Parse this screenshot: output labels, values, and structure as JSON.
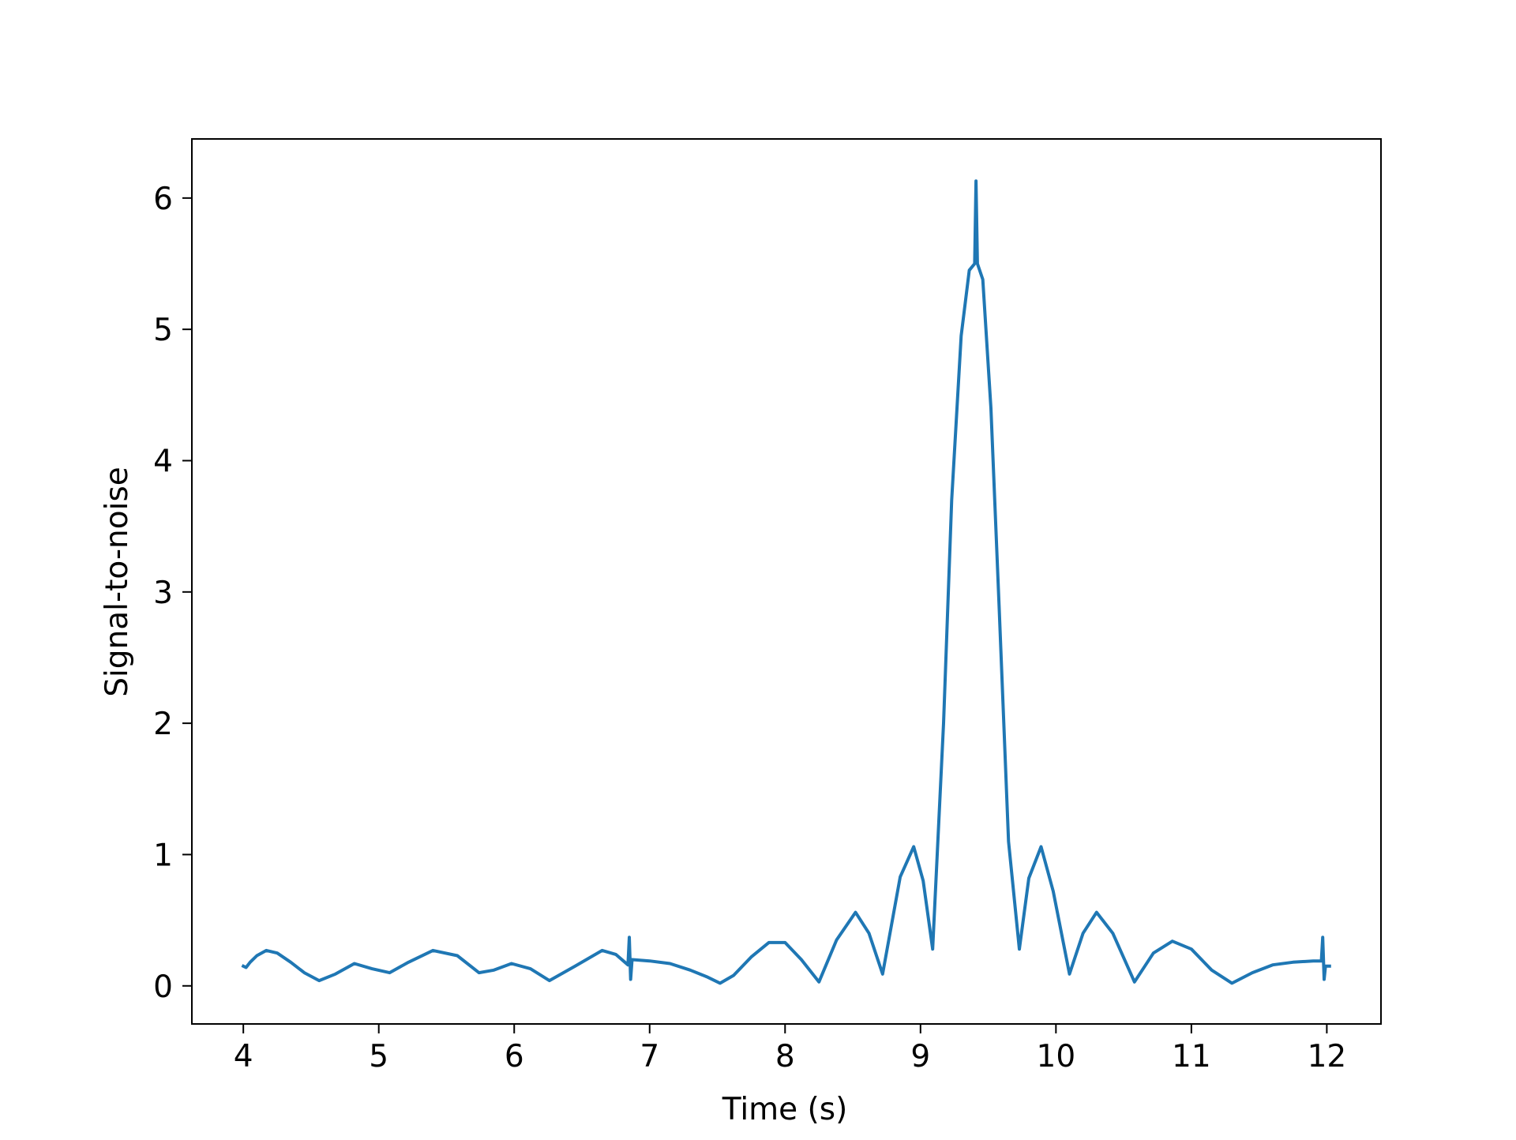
{
  "chart_data": {
    "type": "line",
    "title": "",
    "xlabel": "Time (s)",
    "ylabel": "Signal-to-noise",
    "xlim": [
      3.62,
      12.4
    ],
    "ylim": [
      -0.29,
      6.45
    ],
    "xticks": [
      4,
      5,
      6,
      7,
      8,
      9,
      10,
      11,
      12
    ],
    "yticks": [
      0,
      1,
      2,
      3,
      4,
      5,
      6
    ],
    "grid": false,
    "legend": "none",
    "series": [
      {
        "color": "#1f77b4",
        "points": [
          [
            4.0,
            0.15
          ],
          [
            4.02,
            0.14
          ],
          [
            4.05,
            0.18
          ],
          [
            4.1,
            0.23
          ],
          [
            4.17,
            0.27
          ],
          [
            4.25,
            0.25
          ],
          [
            4.35,
            0.18
          ],
          [
            4.45,
            0.1
          ],
          [
            4.56,
            0.04
          ],
          [
            4.68,
            0.09
          ],
          [
            4.82,
            0.17
          ],
          [
            4.95,
            0.13
          ],
          [
            5.08,
            0.1
          ],
          [
            5.22,
            0.18
          ],
          [
            5.4,
            0.27
          ],
          [
            5.58,
            0.23
          ],
          [
            5.74,
            0.1
          ],
          [
            5.85,
            0.12
          ],
          [
            5.98,
            0.17
          ],
          [
            6.12,
            0.13
          ],
          [
            6.26,
            0.04
          ],
          [
            6.45,
            0.15
          ],
          [
            6.65,
            0.27
          ],
          [
            6.75,
            0.24
          ],
          [
            6.84,
            0.16
          ],
          [
            6.85,
            0.37
          ],
          [
            6.86,
            0.05
          ],
          [
            6.87,
            0.2
          ],
          [
            7.0,
            0.19
          ],
          [
            7.15,
            0.17
          ],
          [
            7.3,
            0.12
          ],
          [
            7.42,
            0.07
          ],
          [
            7.52,
            0.02
          ],
          [
            7.62,
            0.08
          ],
          [
            7.75,
            0.22
          ],
          [
            7.88,
            0.33
          ],
          [
            8.0,
            0.33
          ],
          [
            8.12,
            0.2
          ],
          [
            8.25,
            0.03
          ],
          [
            8.38,
            0.35
          ],
          [
            8.52,
            0.56
          ],
          [
            8.62,
            0.4
          ],
          [
            8.72,
            0.09
          ],
          [
            8.85,
            0.83
          ],
          [
            8.95,
            1.06
          ],
          [
            9.02,
            0.8
          ],
          [
            9.09,
            0.28
          ],
          [
            9.17,
            2.0
          ],
          [
            9.23,
            3.7
          ],
          [
            9.3,
            4.95
          ],
          [
            9.36,
            5.45
          ],
          [
            9.4,
            5.5
          ],
          [
            9.41,
            6.13
          ],
          [
            9.42,
            5.5
          ],
          [
            9.46,
            5.38
          ],
          [
            9.52,
            4.4
          ],
          [
            9.58,
            2.9
          ],
          [
            9.65,
            1.1
          ],
          [
            9.73,
            0.28
          ],
          [
            9.8,
            0.82
          ],
          [
            9.89,
            1.06
          ],
          [
            9.98,
            0.72
          ],
          [
            10.1,
            0.09
          ],
          [
            10.2,
            0.4
          ],
          [
            10.3,
            0.56
          ],
          [
            10.42,
            0.4
          ],
          [
            10.58,
            0.03
          ],
          [
            10.72,
            0.25
          ],
          [
            10.86,
            0.34
          ],
          [
            11.0,
            0.28
          ],
          [
            11.15,
            0.12
          ],
          [
            11.3,
            0.02
          ],
          [
            11.45,
            0.1
          ],
          [
            11.6,
            0.16
          ],
          [
            11.75,
            0.18
          ],
          [
            11.9,
            0.19
          ],
          [
            11.96,
            0.19
          ],
          [
            11.97,
            0.37
          ],
          [
            11.98,
            0.05
          ],
          [
            11.99,
            0.15
          ],
          [
            12.02,
            0.15
          ]
        ]
      }
    ]
  }
}
